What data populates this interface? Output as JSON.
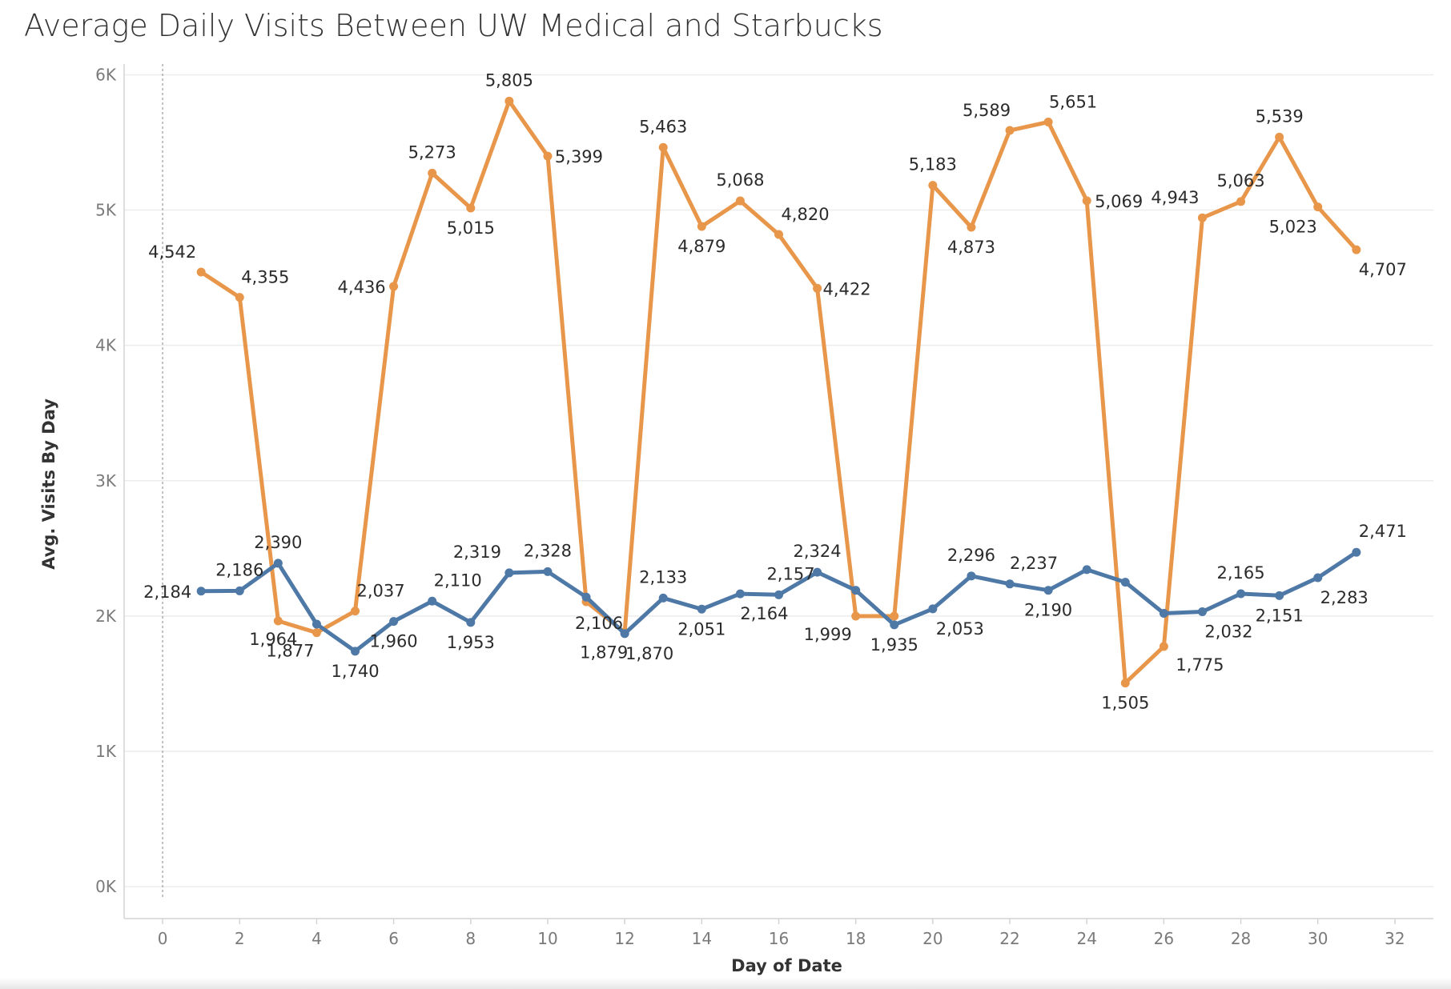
{
  "chart_data": {
    "type": "line",
    "title": "Average Daily Visits Between UW Medical and Starbucks",
    "xlabel": "Day of Date",
    "ylabel": "Avg. Visits By Day",
    "xlim": [
      -1,
      33
    ],
    "ylim": [
      -100,
      6050
    ],
    "x_ticks": [
      0,
      2,
      4,
      6,
      8,
      10,
      12,
      14,
      16,
      18,
      20,
      22,
      24,
      26,
      28,
      30,
      32
    ],
    "y_ticks": [
      0,
      1000,
      2000,
      3000,
      4000,
      5000,
      6000
    ],
    "y_tick_labels": [
      "0K",
      "1K",
      "2K",
      "3K",
      "4K",
      "5K",
      "6K"
    ],
    "grid": "horizontal",
    "reference_line_x": 0,
    "x": [
      1,
      2,
      3,
      4,
      5,
      6,
      7,
      8,
      9,
      10,
      11,
      12,
      13,
      14,
      15,
      16,
      17,
      18,
      19,
      20,
      21,
      22,
      23,
      24,
      25,
      26,
      27,
      28,
      29,
      30,
      31
    ],
    "series": [
      {
        "color": "#e8964a",
        "values": [
          4542,
          4355,
          1964,
          1877,
          2037,
          4436,
          5273,
          5015,
          5805,
          5399,
          2106,
          1879,
          5463,
          4879,
          5068,
          4820,
          4422,
          1999,
          1999,
          5183,
          4873,
          5589,
          5651,
          5069,
          1505,
          1775,
          4943,
          5063,
          5539,
          5023,
          4707
        ],
        "labels": [
          "4,542",
          "4,355",
          "1,964",
          "1,877",
          "2,037",
          "4,436",
          "5,273",
          "5,015",
          "5,805",
          "5,399",
          "2,106",
          "1,879",
          "5,463",
          "4,879",
          "5,068",
          "4,820",
          "4,422",
          "1,999",
          "",
          "5,183",
          "4,873",
          "5,589",
          "5,651",
          "5,069",
          "1,505",
          "1,775",
          "4,943",
          "5,063",
          "5,539",
          "5,023",
          "4,707"
        ]
      },
      {
        "color": "#4e79a7",
        "values": [
          2184,
          2186,
          2390,
          1940,
          1740,
          1960,
          2110,
          1953,
          2319,
          2328,
          2140,
          1870,
          2133,
          2051,
          2164,
          2157,
          2324,
          2190,
          1935,
          2053,
          2296,
          2237,
          2190,
          2343,
          2250,
          2020,
          2032,
          2165,
          2151,
          2283,
          2471
        ],
        "labels": [
          "2,184",
          "2,186",
          "2,390",
          "",
          "1,740",
          "1,960",
          "2,110",
          "1,953",
          "2,319",
          "2,328",
          "",
          "1,870",
          "2,133",
          "2,051",
          "2,164",
          "2,157",
          "2,324",
          "",
          "1,935",
          "2,053",
          "2,296",
          "2,237",
          "2,190",
          "",
          "",
          "",
          "2,032",
          "2,165",
          "2,151",
          "2,283",
          "2,471"
        ]
      }
    ]
  }
}
